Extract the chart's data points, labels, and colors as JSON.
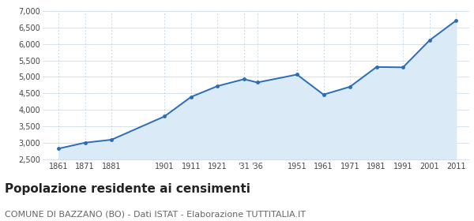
{
  "years": [
    1861,
    1871,
    1881,
    1901,
    1911,
    1921,
    1931,
    1936,
    1951,
    1961,
    1971,
    1981,
    1991,
    2001,
    2011
  ],
  "x_labels": [
    "1861",
    "1871",
    "1881",
    "1901",
    "1911",
    "1921",
    "'31",
    "'36",
    "1951",
    "1961",
    "1971",
    "1981",
    "1991",
    "2001",
    "2011"
  ],
  "population": [
    2820,
    3000,
    3090,
    3800,
    4390,
    4720,
    4930,
    4830,
    5070,
    4460,
    4700,
    5300,
    5290,
    6110,
    6710
  ],
  "ylim": [
    2500,
    7000
  ],
  "yticks": [
    2500,
    3000,
    3500,
    4000,
    4500,
    5000,
    5500,
    6000,
    6500,
    7000
  ],
  "line_color": "#2b6cb8",
  "fill_color": "#daeaf7",
  "marker_color": "#2b6cb8",
  "bg_color": "#ffffff",
  "grid_color_h": "#c8d8e8",
  "grid_color_v": "#b8cce0",
  "title": "Popolazione residente ai censimenti",
  "title_fontsize": 11,
  "title_fontweight": "bold",
  "subtitle": "COMUNE DI BAZZANO (BO) - Dati ISTAT - Elaborazione TUTTITALIA.IT",
  "subtitle_fontsize": 8
}
